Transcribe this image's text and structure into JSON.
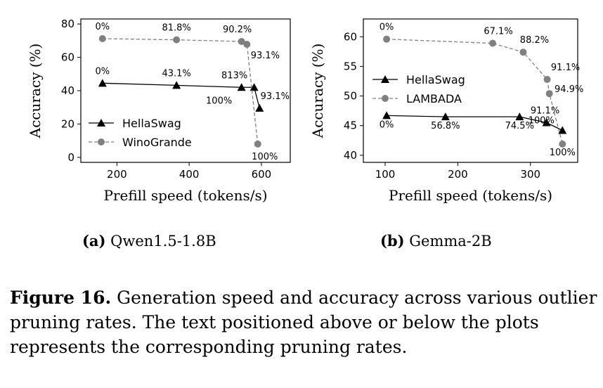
{
  "chart_data": [
    {
      "type": "line",
      "xlabel": "Prefill speed (tokens/s)",
      "ylabel": "Accuracy (%)",
      "xlim": [
        100,
        680
      ],
      "ylim": [
        -3,
        83
      ],
      "xticks": [
        200,
        400,
        600
      ],
      "yticks": [
        0,
        20,
        40,
        60,
        80
      ],
      "legend": "lower-left",
      "series": [
        {
          "name": "HellaSwag",
          "marker": "triangle",
          "line": "solid",
          "color": "#000000",
          "x": [
            160,
            365,
            545,
            580,
            595
          ],
          "y": [
            44.5,
            43.2,
            42.0,
            42.0,
            29.5
          ],
          "labels": [
            "0%",
            "43.1%",
            "813%",
            "100%",
            "93.1%"
          ]
        },
        {
          "name": "WinoGrande",
          "marker": "circle",
          "line": "dashed",
          "color": "#808080",
          "x": [
            160,
            365,
            545,
            560,
            590
          ],
          "y": [
            71.2,
            70.5,
            69.5,
            67.8,
            8.0
          ],
          "labels": [
            "0%",
            "81.8%",
            "90.2%",
            "93.1%",
            "100%"
          ]
        }
      ]
    },
    {
      "type": "line",
      "xlabel": "Prefill speed (tokens/s)",
      "ylabel": "Accuracy (%)",
      "xlim": [
        70,
        365
      ],
      "ylim": [
        38.8,
        63
      ],
      "xticks": [
        100,
        200,
        300
      ],
      "yticks": [
        40,
        45,
        50,
        55,
        60
      ],
      "legend": "middle-left",
      "series": [
        {
          "name": "HellaSwag",
          "marker": "triangle",
          "line": "solid",
          "color": "#000000",
          "x": [
            102,
            183,
            285,
            322,
            344
          ],
          "y": [
            46.7,
            46.5,
            46.5,
            45.5,
            44.2
          ],
          "labels": [
            "0%",
            "56.8%",
            "74.5%",
            "91.1%",
            "100%"
          ]
        },
        {
          "name": "LAMBADA",
          "marker": "circle",
          "line": "dashed",
          "color": "#808080",
          "x": [
            102,
            248,
            290,
            323,
            326,
            344
          ],
          "y": [
            59.6,
            58.9,
            57.4,
            52.8,
            50.4,
            41.9
          ],
          "labels": [
            "0%",
            "67.1%",
            "88.2%",
            "91.1%",
            "94.9%",
            "100%"
          ]
        }
      ]
    }
  ],
  "subcaptions": [
    {
      "tag": "(a)",
      "text": "Qwen1.5-1.8B"
    },
    {
      "tag": "(b)",
      "text": "Gemma-2B"
    }
  ],
  "caption": {
    "label": "Figure 16.",
    "text": "Generation speed and accuracy across various outlier pruning rates. The text positioned above or below the plots represents the corresponding pruning rates."
  }
}
